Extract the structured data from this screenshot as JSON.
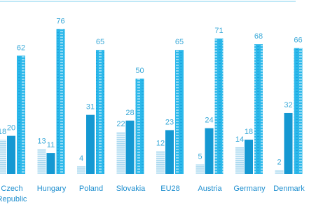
{
  "chart_data": {
    "type": "bar",
    "categories": [
      "Czech Republic",
      "Hungary",
      "Poland",
      "Slovakia",
      "EU28",
      "Austria",
      "Germany",
      "Denmark"
    ],
    "series": [
      {
        "color": "#bfe3f3",
        "values": [
          18,
          13,
          4,
          22,
          12,
          5,
          14,
          2
        ]
      },
      {
        "color": "#1598d2",
        "values": [
          20,
          11,
          31,
          28,
          23,
          24,
          18,
          32
        ]
      },
      {
        "color": "#2cb8ea",
        "values": [
          62,
          76,
          65,
          50,
          65,
          71,
          68,
          66
        ]
      }
    ]
  }
}
